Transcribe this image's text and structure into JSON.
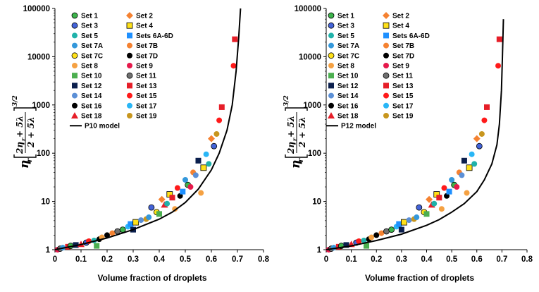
{
  "chart_data": [
    {
      "type": "scatter",
      "model_label": "P10 model",
      "xlabel": "Volume fraction of droplets",
      "ylabel": {
        "eta": "η",
        "sub_r": "r",
        "num": "2η",
        "num_sub": "r",
        "num_rest": " + 5λ",
        "den": "2 + 5λ",
        "exp": "3/2"
      },
      "xlim": [
        0,
        0.8
      ],
      "ylim": [
        1,
        100000
      ],
      "x_ticks": [
        "0",
        "0.1",
        "0.2",
        "0.3",
        "0.4",
        "0.5",
        "0.6",
        "0.7",
        "0.8"
      ],
      "y_ticks": [
        "1",
        "10",
        "100",
        "1000",
        "10000",
        "100000"
      ],
      "legend": [
        {
          "label": "Set 1",
          "color": "#3cb44b",
          "marker": "circle-outline"
        },
        {
          "label": "Set 2",
          "color": "#f58231",
          "marker": "diamond"
        },
        {
          "label": "Set 3",
          "color": "#4363d8",
          "marker": "circle-outline"
        },
        {
          "label": "Set 4",
          "color": "#ffe119",
          "marker": "square-outline"
        },
        {
          "label": "Set 5",
          "color": "#20b2aa",
          "marker": "circle"
        },
        {
          "label": "Sets 6A-6D",
          "color": "#1e90ff",
          "marker": "square"
        },
        {
          "label": "Set 7A",
          "color": "#3498db",
          "marker": "circle"
        },
        {
          "label": "Set 7B",
          "color": "#f58231",
          "marker": "circle"
        },
        {
          "label": "Set 7C",
          "color": "#ffe119",
          "marker": "circle-outline"
        },
        {
          "label": "Set 7D",
          "color": "#000000",
          "marker": "circle"
        },
        {
          "label": "Set 8",
          "color": "#f5a142",
          "marker": "circle"
        },
        {
          "label": "Set 9",
          "color": "#e6194b",
          "marker": "circle"
        },
        {
          "label": "Set 10",
          "color": "#4caf50",
          "marker": "square"
        },
        {
          "label": "Set 11",
          "color": "#707070",
          "marker": "circle-outline"
        },
        {
          "label": "Set 12",
          "color": "#0b1f4d",
          "marker": "square"
        },
        {
          "label": "Set 13",
          "color": "#e61e28",
          "marker": "square"
        },
        {
          "label": "Set 14",
          "color": "#5b8fd6",
          "marker": "circle"
        },
        {
          "label": "Set 15",
          "color": "#ff1a1a",
          "marker": "circle"
        },
        {
          "label": "Set 16",
          "color": "#000000",
          "marker": "circle"
        },
        {
          "label": "Set 17",
          "color": "#29b6f6",
          "marker": "circle"
        },
        {
          "label": "Set 18",
          "color": "#e61e28",
          "marker": "triangle"
        },
        {
          "label": "Set 19",
          "color": "#c8961e",
          "marker": "circle"
        }
      ],
      "model_curve": [
        [
          0,
          1
        ],
        [
          0.1,
          1.28
        ],
        [
          0.2,
          1.75
        ],
        [
          0.3,
          2.6
        ],
        [
          0.4,
          4.3
        ],
        [
          0.45,
          6
        ],
        [
          0.5,
          9.5
        ],
        [
          0.55,
          18
        ],
        [
          0.6,
          45
        ],
        [
          0.63,
          100
        ],
        [
          0.66,
          300
        ],
        [
          0.68,
          1000
        ],
        [
          0.695,
          5000
        ],
        [
          0.705,
          25000
        ],
        [
          0.712,
          100000
        ]
      ],
      "points": [
        [
          0.01,
          1,
          11
        ],
        [
          0.02,
          1.05,
          13
        ],
        [
          0.03,
          1.1,
          6
        ],
        [
          0.05,
          1.15,
          15
        ],
        [
          0.06,
          1.2,
          0
        ],
        [
          0.08,
          1.25,
          14
        ],
        [
          0.1,
          1.3,
          20
        ],
        [
          0.12,
          1.4,
          2
        ],
        [
          0.13,
          1.5,
          17
        ],
        [
          0.15,
          1.55,
          4
        ],
        [
          0.16,
          1.2,
          12
        ],
        [
          0.17,
          1.65,
          9
        ],
        [
          0.18,
          1.8,
          10
        ],
        [
          0.2,
          2,
          18
        ],
        [
          0.22,
          2.2,
          7
        ],
        [
          0.24,
          2.4,
          13
        ],
        [
          0.26,
          2.6,
          0
        ],
        [
          0.28,
          3,
          19
        ],
        [
          0.29,
          3.4,
          5
        ],
        [
          0.3,
          2.6,
          14
        ],
        [
          0.31,
          3.7,
          3
        ],
        [
          0.33,
          4.1,
          16
        ],
        [
          0.35,
          4.3,
          21
        ],
        [
          0.36,
          4.7,
          6
        ],
        [
          0.37,
          7.5,
          2
        ],
        [
          0.39,
          6,
          8
        ],
        [
          0.4,
          5.5,
          12
        ],
        [
          0.41,
          11,
          1
        ],
        [
          0.42,
          8.5,
          20
        ],
        [
          0.43,
          9,
          4
        ],
        [
          0.44,
          14,
          3
        ],
        [
          0.45,
          12,
          15
        ],
        [
          0.46,
          7,
          10
        ],
        [
          0.47,
          19,
          17
        ],
        [
          0.48,
          13,
          9
        ],
        [
          0.49,
          16,
          5
        ],
        [
          0.5,
          28,
          6
        ],
        [
          0.51,
          22,
          0
        ],
        [
          0.52,
          20,
          11
        ],
        [
          0.53,
          40,
          7
        ],
        [
          0.54,
          35,
          16
        ],
        [
          0.55,
          70,
          14
        ],
        [
          0.56,
          15,
          10
        ],
        [
          0.57,
          50,
          3
        ],
        [
          0.58,
          95,
          19
        ],
        [
          0.59,
          60,
          4
        ],
        [
          0.6,
          200,
          1
        ],
        [
          0.61,
          140,
          2
        ],
        [
          0.62,
          250,
          21
        ],
        [
          0.63,
          480,
          17
        ],
        [
          0.64,
          900,
          15
        ],
        [
          0.685,
          6500,
          17
        ],
        [
          0.69,
          23000,
          15
        ]
      ]
    },
    {
      "type": "scatter",
      "model_label": "P12 model",
      "xlabel": "Volume fraction of droplets",
      "ylabel": {
        "eta": "η",
        "sub_r": "r",
        "num": "2η",
        "num_sub": "r",
        "num_rest": " + 5λ",
        "den": "2 + 5λ",
        "exp": "3/2"
      },
      "xlim": [
        0,
        0.8
      ],
      "ylim": [
        1,
        100000
      ],
      "x_ticks": [
        "0",
        "0.1",
        "0.2",
        "0.3",
        "0.4",
        "0.5",
        "0.6",
        "0.7",
        "0.8"
      ],
      "y_ticks": [
        "1",
        "10",
        "100",
        "1000",
        "10000",
        "100000"
      ],
      "legend": [
        {
          "label": "Set 1",
          "color": "#3cb44b",
          "marker": "circle-outline"
        },
        {
          "label": "Set 2",
          "color": "#f58231",
          "marker": "diamond"
        },
        {
          "label": "Set 3",
          "color": "#4363d8",
          "marker": "circle-outline"
        },
        {
          "label": "Set 4",
          "color": "#ffe119",
          "marker": "square-outline"
        },
        {
          "label": "Set 5",
          "color": "#20b2aa",
          "marker": "circle"
        },
        {
          "label": "Sets 6A-6D",
          "color": "#1e90ff",
          "marker": "square"
        },
        {
          "label": "Set 7A",
          "color": "#3498db",
          "marker": "circle"
        },
        {
          "label": "Set 7B",
          "color": "#f58231",
          "marker": "circle"
        },
        {
          "label": "Set 7C",
          "color": "#ffe119",
          "marker": "circle-outline"
        },
        {
          "label": "Set 7D",
          "color": "#000000",
          "marker": "circle"
        },
        {
          "label": "Set 8",
          "color": "#f5a142",
          "marker": "circle"
        },
        {
          "label": "Set 9",
          "color": "#e6194b",
          "marker": "circle"
        },
        {
          "label": "Set 10",
          "color": "#4caf50",
          "marker": "square"
        },
        {
          "label": "Set 11",
          "color": "#707070",
          "marker": "circle-outline"
        },
        {
          "label": "Set 12",
          "color": "#0b1f4d",
          "marker": "square"
        },
        {
          "label": "Set 13",
          "color": "#e61e28",
          "marker": "square"
        },
        {
          "label": "Set 14",
          "color": "#5b8fd6",
          "marker": "circle"
        },
        {
          "label": "Set 15",
          "color": "#ff1a1a",
          "marker": "circle"
        },
        {
          "label": "Set 16",
          "color": "#000000",
          "marker": "circle"
        },
        {
          "label": "Set 17",
          "color": "#29b6f6",
          "marker": "circle"
        },
        {
          "label": "Set 18",
          "color": "#e61e28",
          "marker": "triangle"
        },
        {
          "label": "Set 19",
          "color": "#c8961e",
          "marker": "circle"
        }
      ],
      "model_curve": [
        [
          0,
          1
        ],
        [
          0.1,
          1.2
        ],
        [
          0.2,
          1.55
        ],
        [
          0.3,
          2.1
        ],
        [
          0.4,
          3.2
        ],
        [
          0.45,
          4.2
        ],
        [
          0.5,
          6
        ],
        [
          0.55,
          9
        ],
        [
          0.6,
          16
        ],
        [
          0.63,
          28
        ],
        [
          0.66,
          60
        ],
        [
          0.68,
          150
        ],
        [
          0.69,
          400
        ],
        [
          0.698,
          2000
        ],
        [
          0.702,
          10000
        ],
        [
          0.706,
          60000
        ]
      ],
      "points": [
        [
          0.01,
          1,
          11
        ],
        [
          0.02,
          1.05,
          13
        ],
        [
          0.03,
          1.1,
          6
        ],
        [
          0.05,
          1.15,
          15
        ],
        [
          0.06,
          1.2,
          0
        ],
        [
          0.08,
          1.25,
          14
        ],
        [
          0.1,
          1.3,
          20
        ],
        [
          0.12,
          1.4,
          2
        ],
        [
          0.13,
          1.5,
          17
        ],
        [
          0.15,
          1.55,
          4
        ],
        [
          0.16,
          1.2,
          12
        ],
        [
          0.17,
          1.65,
          9
        ],
        [
          0.18,
          1.8,
          10
        ],
        [
          0.2,
          2,
          18
        ],
        [
          0.22,
          2.2,
          7
        ],
        [
          0.24,
          2.4,
          13
        ],
        [
          0.26,
          2.6,
          0
        ],
        [
          0.28,
          3,
          19
        ],
        [
          0.29,
          3.4,
          5
        ],
        [
          0.3,
          2.6,
          14
        ],
        [
          0.31,
          3.7,
          3
        ],
        [
          0.33,
          4.1,
          16
        ],
        [
          0.35,
          4.3,
          21
        ],
        [
          0.36,
          4.7,
          6
        ],
        [
          0.37,
          7.5,
          2
        ],
        [
          0.39,
          6,
          8
        ],
        [
          0.4,
          5.5,
          12
        ],
        [
          0.41,
          11,
          1
        ],
        [
          0.42,
          8.5,
          20
        ],
        [
          0.43,
          9,
          4
        ],
        [
          0.44,
          14,
          3
        ],
        [
          0.45,
          12,
          15
        ],
        [
          0.46,
          7,
          10
        ],
        [
          0.47,
          19,
          17
        ],
        [
          0.48,
          13,
          9
        ],
        [
          0.49,
          16,
          5
        ],
        [
          0.5,
          28,
          6
        ],
        [
          0.51,
          22,
          0
        ],
        [
          0.52,
          20,
          11
        ],
        [
          0.53,
          40,
          7
        ],
        [
          0.54,
          35,
          16
        ],
        [
          0.55,
          70,
          14
        ],
        [
          0.56,
          15,
          10
        ],
        [
          0.57,
          50,
          3
        ],
        [
          0.58,
          95,
          19
        ],
        [
          0.59,
          60,
          4
        ],
        [
          0.6,
          200,
          1
        ],
        [
          0.61,
          140,
          2
        ],
        [
          0.62,
          250,
          21
        ],
        [
          0.63,
          480,
          17
        ],
        [
          0.64,
          900,
          15
        ],
        [
          0.685,
          6500,
          17
        ],
        [
          0.69,
          23000,
          15
        ]
      ]
    }
  ]
}
